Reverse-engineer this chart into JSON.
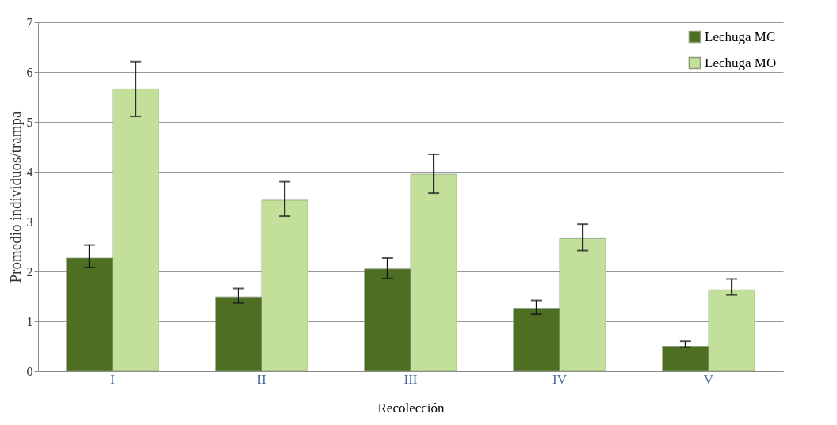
{
  "chart_data": {
    "type": "bar",
    "xlabel": "Recolección",
    "ylabel": "Promedio individuos/trampa",
    "categories": [
      "I",
      "II",
      "III",
      "IV",
      "V"
    ],
    "series": [
      {
        "name": "Lechuga MC",
        "color": "#4e6e23",
        "values": [
          2.27,
          1.49,
          2.05,
          1.26,
          0.5
        ],
        "errors": [
          [
            2.08,
            2.53
          ],
          [
            1.37,
            1.66
          ],
          [
            1.86,
            2.27
          ],
          [
            1.14,
            1.42
          ],
          [
            0.48,
            0.6
          ]
        ]
      },
      {
        "name": "Lechuga MO",
        "color": "#c3e09b",
        "values": [
          5.66,
          3.43,
          3.95,
          2.66,
          1.63
        ],
        "errors": [
          [
            5.11,
            6.21
          ],
          [
            3.11,
            3.8
          ],
          [
            3.57,
            4.35
          ],
          [
            2.42,
            2.95
          ],
          [
            1.53,
            1.85
          ]
        ]
      }
    ],
    "ylim": [
      0,
      7
    ],
    "yticks": [
      0,
      1,
      2,
      3,
      4,
      5,
      6,
      7
    ],
    "grid": "y",
    "legend": "top right"
  }
}
